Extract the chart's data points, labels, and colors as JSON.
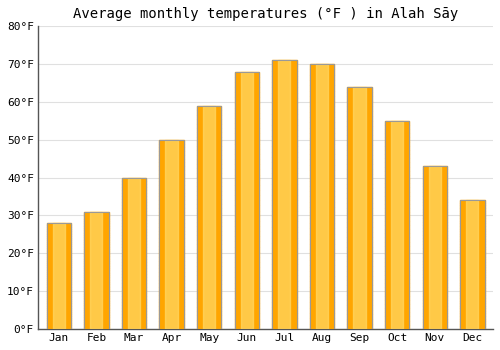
{
  "title": "Average monthly temperatures (°F ) in Alah Sāy",
  "months": [
    "Jan",
    "Feb",
    "Mar",
    "Apr",
    "May",
    "Jun",
    "Jul",
    "Aug",
    "Sep",
    "Oct",
    "Nov",
    "Dec"
  ],
  "values": [
    28,
    31,
    40,
    50,
    59,
    68,
    71,
    70,
    64,
    55,
    43,
    34
  ],
  "bar_color_main": "#FFA500",
  "bar_color_light": "#FFD966",
  "ylim": [
    0,
    80
  ],
  "yticks": [
    0,
    10,
    20,
    30,
    40,
    50,
    60,
    70,
    80
  ],
  "ytick_labels": [
    "0°F",
    "10°F",
    "20°F",
    "30°F",
    "40°F",
    "50°F",
    "60°F",
    "70°F",
    "80°F"
  ],
  "background_color": "#ffffff",
  "grid_color": "#e0e0e0",
  "title_fontsize": 10,
  "tick_fontsize": 8,
  "bar_edge_color": "#999999",
  "bar_width": 0.65
}
